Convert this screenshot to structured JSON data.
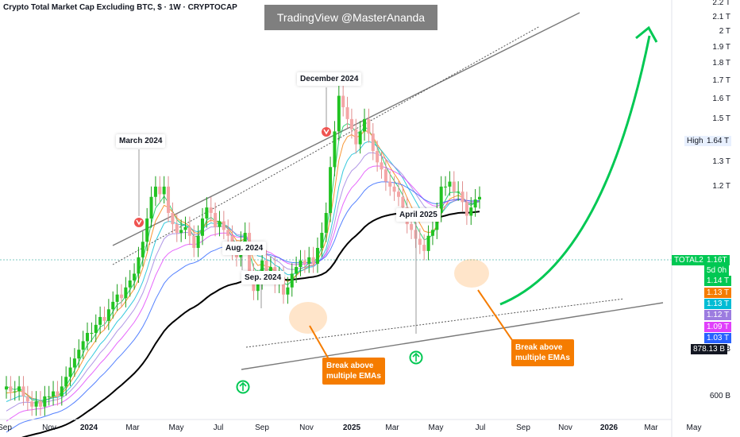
{
  "header": {
    "ticker": "Crypto Total Market Cap Excluding BTC, $ · 1W · CRYPTOCAP",
    "watermark": "TradingView @MasterAnanda"
  },
  "annotations": {
    "march_2024": "March 2024",
    "aug_2024": "Aug. 2024",
    "sep_2024": "Sep. 2024",
    "december_2024": "December 2024",
    "april_2025": "April 2025",
    "break_ema_1_line1": "Break above",
    "break_ema_1_line2": "multiple EMAs",
    "break_ema_2_line1": "Break above",
    "break_ema_2_line2": "multiple EMAs"
  },
  "price_tags": {
    "high_label": "High",
    "high_value": "1.64 T",
    "symbol": "TOTAL2",
    "last": "1.16T",
    "countdown": "5d 0h",
    "ema_values": [
      {
        "value": "1.14 T",
        "color": "#00c853"
      },
      {
        "value": "1.13 T",
        "color": "#f57c00"
      },
      {
        "value": "1.13 T",
        "color": "#00bcd4"
      },
      {
        "value": "1.12 T",
        "color": "#9c7ce0"
      },
      {
        "value": "1.09 T",
        "color": "#e040fb"
      },
      {
        "value": "1.03 T",
        "color": "#2962ff"
      },
      {
        "value": "878.13 B",
        "color": "#131722"
      }
    ]
  },
  "axes": {
    "y_ticks": [
      "2.2 T",
      "2.1 T",
      "2 T",
      "1.9 T",
      "1.8 T",
      "1.7 T",
      "1.6 T",
      "1.5 T",
      "1.4 T",
      "1.3 T",
      "1.2 T",
      "700 B",
      "600 B"
    ],
    "x_ticks": [
      {
        "label": "Sep",
        "bold": false
      },
      {
        "label": "Nov",
        "bold": false
      },
      {
        "label": "2024",
        "bold": true
      },
      {
        "label": "Mar",
        "bold": false
      },
      {
        "label": "May",
        "bold": false
      },
      {
        "label": "Jul",
        "bold": false
      },
      {
        "label": "Sep",
        "bold": false
      },
      {
        "label": "Nov",
        "bold": false
      },
      {
        "label": "2025",
        "bold": true
      },
      {
        "label": "Mar",
        "bold": false
      },
      {
        "label": "May",
        "bold": false
      },
      {
        "label": "Jul",
        "bold": false
      },
      {
        "label": "Sep",
        "bold": false
      },
      {
        "label": "Nov",
        "bold": false
      },
      {
        "label": "2026",
        "bold": true
      },
      {
        "label": "Mar",
        "bold": false
      },
      {
        "label": "May",
        "bold": false
      }
    ]
  },
  "chart_data": {
    "type": "candlestick",
    "title": "Crypto Total Market Cap Excluding BTC, $ · 1W · CRYPTOCAP",
    "unit": "USD (T = trillion)",
    "y_scale": "log",
    "ylim": [
      0.55,
      2.2
    ],
    "x_range": [
      "2023-09",
      "2026-05"
    ],
    "last_price": 1.16,
    "high": 1.64,
    "ema_last_values": [
      1.14,
      1.13,
      1.13,
      1.12,
      1.09,
      1.03,
      0.878
    ],
    "ema_colors": [
      "#00c853",
      "#f57c00",
      "#00bcd4",
      "#9c7ce0",
      "#e040fb",
      "#2962ff",
      "#000000"
    ],
    "approx_closes": [
      0.62,
      0.61,
      0.61,
      0.62,
      0.6,
      0.59,
      0.58,
      0.59,
      0.58,
      0.6,
      0.6,
      0.61,
      0.6,
      0.62,
      0.64,
      0.66,
      0.68,
      0.7,
      0.72,
      0.74,
      0.74,
      0.76,
      0.78,
      0.77,
      0.8,
      0.82,
      0.84,
      0.83,
      0.86,
      0.88,
      0.9,
      0.95,
      1.0,
      1.08,
      1.16,
      1.2,
      1.17,
      1.2,
      1.1,
      1.06,
      1.03,
      1.04,
      1.05,
      1.02,
      0.98,
      1.02,
      1.08,
      1.12,
      1.1,
      1.05,
      1.07,
      1.04,
      1.02,
      0.97,
      0.95,
      1.0,
      1.03,
      0.9,
      0.85,
      0.88,
      0.94,
      0.9,
      0.92,
      0.87,
      0.89,
      0.84,
      0.86,
      0.9,
      0.92,
      0.94,
      0.93,
      0.95,
      0.93,
      0.98,
      1.03,
      1.1,
      1.28,
      1.44,
      1.62,
      1.56,
      1.5,
      1.45,
      1.38,
      1.44,
      1.5,
      1.43,
      1.35,
      1.3,
      1.27,
      1.22,
      1.2,
      1.18,
      1.16,
      1.12,
      1.06,
      1.04,
      1.01,
      0.99,
      0.97,
      1.02,
      1.04,
      1.1,
      1.2,
      1.2,
      1.22,
      1.18,
      1.18,
      1.14,
      1.09,
      1.12,
      1.15,
      1.16
    ],
    "annotations": [
      "March 2024",
      "Aug. 2024",
      "Sep. 2024",
      "December 2024",
      "April 2025"
    ]
  }
}
